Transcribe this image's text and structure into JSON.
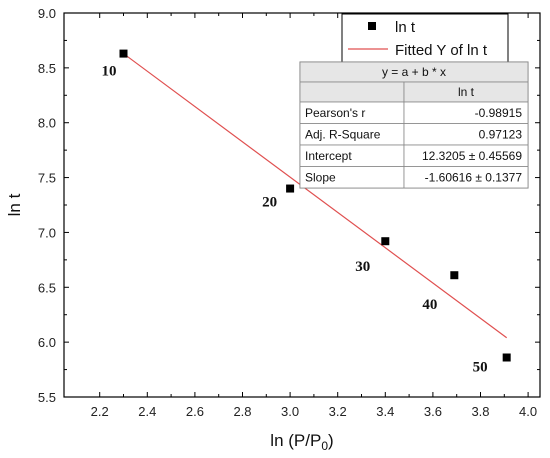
{
  "chart_data": {
    "type": "scatter",
    "xlabel": "ln (P/P",
    "xlabel_sub": "0",
    "xlabel_close": ")",
    "ylabel": "ln t",
    "xlim": [
      2.05,
      4.05
    ],
    "ylim": [
      5.5,
      9.0
    ],
    "xticks": [
      2.2,
      2.4,
      2.6,
      2.8,
      3.0,
      3.2,
      3.4,
      3.6,
      3.8,
      4.0
    ],
    "yticks": [
      5.5,
      6.0,
      6.5,
      7.0,
      7.5,
      8.0,
      8.5,
      9.0
    ],
    "grid": false,
    "legend_position": "top-right",
    "series": [
      {
        "name": "ln t",
        "marker": "square",
        "color": "#000000",
        "points": [
          {
            "x": 2.3,
            "y": 8.63,
            "label": "10"
          },
          {
            "x": 3.0,
            "y": 7.4,
            "label": "20"
          },
          {
            "x": 3.4,
            "y": 6.92,
            "label": "30"
          },
          {
            "x": 3.69,
            "y": 6.61,
            "label": "40"
          },
          {
            "x": 3.91,
            "y": 5.86,
            "label": "50"
          }
        ]
      },
      {
        "name": "Fitted Y of ln t",
        "type": "line",
        "color": "#e05050",
        "x": [
          2.3,
          3.91
        ],
        "y": [
          8.63,
          6.04
        ]
      }
    ],
    "fit_table": {
      "equation": "y = a + b * x",
      "column_header": "ln t",
      "rows": [
        {
          "label": "Pearson's r",
          "value": "-0.98915"
        },
        {
          "label": "Adj. R-Square",
          "value": "0.97123"
        },
        {
          "label": "Intercept",
          "value": "12.3205 ± 0.45569"
        },
        {
          "label": "Slope",
          "value": "-1.60616 ± 0.1377"
        }
      ]
    }
  }
}
